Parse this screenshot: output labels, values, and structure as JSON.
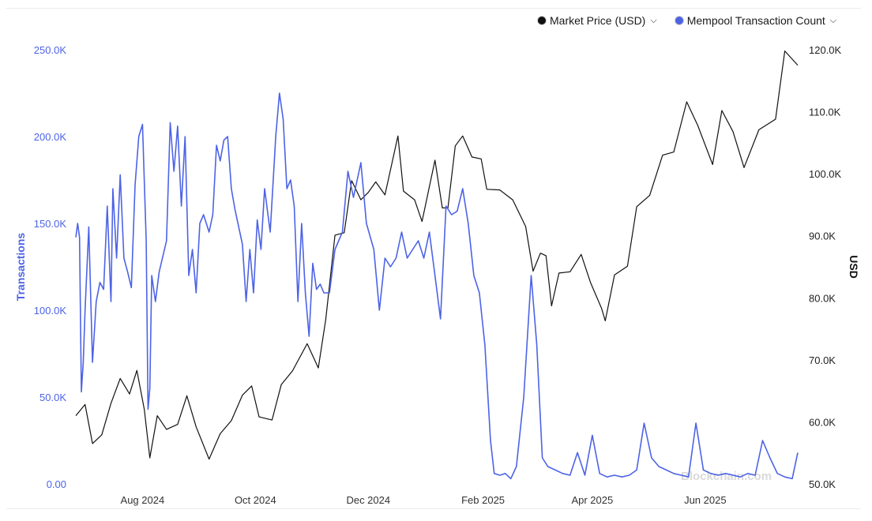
{
  "legend": {
    "price_label": "Market Price (USD)",
    "mempool_label": "Mempool Transaction Count",
    "price_color": "#111111",
    "mempool_color": "#4d63e6",
    "chevron": "❯"
  },
  "watermark": "Blockchain.com",
  "chart_data": {
    "type": "line",
    "left_axis": {
      "label": "Transactions",
      "range": [
        0,
        250000
      ],
      "ticks": [
        "0.00",
        "50.0K",
        "100.0K",
        "150.0K",
        "200.0K",
        "250.0K"
      ]
    },
    "right_axis": {
      "label": "USD",
      "range": [
        50000,
        120000
      ],
      "ticks": [
        "50.0K",
        "60.0K",
        "70.0K",
        "80.0K",
        "90.0K",
        "100.0K",
        "110.0K",
        "120.0K"
      ]
    },
    "x_range": [
      "2024-06-26",
      "2025-07-21"
    ],
    "x_ticks": [
      {
        "date": "2024-08-01",
        "label": "Aug 2024"
      },
      {
        "date": "2024-10-01",
        "label": "Oct 2024"
      },
      {
        "date": "2024-12-01",
        "label": "Dec 2024"
      },
      {
        "date": "2025-02-01",
        "label": "Feb 2025"
      },
      {
        "date": "2025-04-01",
        "label": "Apr 2025"
      },
      {
        "date": "2025-06-01",
        "label": "Jun 2025"
      }
    ],
    "grid": false,
    "legend_position": "top-right",
    "series": [
      {
        "name": "Market Price (USD)",
        "axis": "right",
        "color": "#111111",
        "points": [
          [
            "2024-06-26",
            61000
          ],
          [
            "2024-07-01",
            62800
          ],
          [
            "2024-07-05",
            56500
          ],
          [
            "2024-07-10",
            57900
          ],
          [
            "2024-07-15",
            63000
          ],
          [
            "2024-07-20",
            67000
          ],
          [
            "2024-07-25",
            64500
          ],
          [
            "2024-07-29",
            68300
          ],
          [
            "2024-08-02",
            62000
          ],
          [
            "2024-08-05",
            54200
          ],
          [
            "2024-08-09",
            61000
          ],
          [
            "2024-08-14",
            58800
          ],
          [
            "2024-08-20",
            59600
          ],
          [
            "2024-08-25",
            64200
          ],
          [
            "2024-08-30",
            59200
          ],
          [
            "2024-09-06",
            54000
          ],
          [
            "2024-09-12",
            58100
          ],
          [
            "2024-09-18",
            60200
          ],
          [
            "2024-09-24",
            64300
          ],
          [
            "2024-09-29",
            65800
          ],
          [
            "2024-10-03",
            60800
          ],
          [
            "2024-10-10",
            60300
          ],
          [
            "2024-10-15",
            66000
          ],
          [
            "2024-10-21",
            68200
          ],
          [
            "2024-10-29",
            72600
          ],
          [
            "2024-11-04",
            68700
          ],
          [
            "2024-11-08",
            76500
          ],
          [
            "2024-11-13",
            90100
          ],
          [
            "2024-11-18",
            90500
          ],
          [
            "2024-11-22",
            98900
          ],
          [
            "2024-11-27",
            95800
          ],
          [
            "2024-12-01",
            97000
          ],
          [
            "2024-12-05",
            98700
          ],
          [
            "2024-12-10",
            96600
          ],
          [
            "2024-12-17",
            106100
          ],
          [
            "2024-12-20",
            97200
          ],
          [
            "2024-12-26",
            95800
          ],
          [
            "2024-12-30",
            92300
          ],
          [
            "2025-01-06",
            102200
          ],
          [
            "2025-01-10",
            94500
          ],
          [
            "2025-01-13",
            94500
          ],
          [
            "2025-01-17",
            104500
          ],
          [
            "2025-01-21",
            106100
          ],
          [
            "2025-01-26",
            102700
          ],
          [
            "2025-01-31",
            102400
          ],
          [
            "2025-02-03",
            97500
          ],
          [
            "2025-02-10",
            97400
          ],
          [
            "2025-02-17",
            95800
          ],
          [
            "2025-02-24",
            91500
          ],
          [
            "2025-02-28",
            84300
          ],
          [
            "2025-03-04",
            87200
          ],
          [
            "2025-03-07",
            86800
          ],
          [
            "2025-03-10",
            78700
          ],
          [
            "2025-03-14",
            84000
          ],
          [
            "2025-03-20",
            84200
          ],
          [
            "2025-03-26",
            87000
          ],
          [
            "2025-03-31",
            82500
          ],
          [
            "2025-04-06",
            78300
          ],
          [
            "2025-04-08",
            76300
          ],
          [
            "2025-04-13",
            83700
          ],
          [
            "2025-04-20",
            85100
          ],
          [
            "2025-04-25",
            94700
          ],
          [
            "2025-05-02",
            96500
          ],
          [
            "2025-05-09",
            103000
          ],
          [
            "2025-05-15",
            103500
          ],
          [
            "2025-05-22",
            111600
          ],
          [
            "2025-05-28",
            107800
          ],
          [
            "2025-06-05",
            101500
          ],
          [
            "2025-06-10",
            110200
          ],
          [
            "2025-06-16",
            106800
          ],
          [
            "2025-06-22",
            101000
          ],
          [
            "2025-06-30",
            107100
          ],
          [
            "2025-07-09",
            108800
          ],
          [
            "2025-07-14",
            119800
          ],
          [
            "2025-07-21",
            117500
          ]
        ]
      },
      {
        "name": "Mempool Transaction Count",
        "axis": "left",
        "color": "#4d63e6",
        "points": [
          [
            "2024-06-26",
            142000
          ],
          [
            "2024-06-27",
            150000
          ],
          [
            "2024-06-28",
            142000
          ],
          [
            "2024-06-29",
            53000
          ],
          [
            "2024-06-30",
            70000
          ],
          [
            "2024-07-01",
            100000
          ],
          [
            "2024-07-03",
            148000
          ],
          [
            "2024-07-05",
            70000
          ],
          [
            "2024-07-07",
            105000
          ],
          [
            "2024-07-09",
            116000
          ],
          [
            "2024-07-11",
            112000
          ],
          [
            "2024-07-13",
            160000
          ],
          [
            "2024-07-15",
            105000
          ],
          [
            "2024-07-16",
            170000
          ],
          [
            "2024-07-18",
            130000
          ],
          [
            "2024-07-20",
            178000
          ],
          [
            "2024-07-22",
            130000
          ],
          [
            "2024-07-24",
            122000
          ],
          [
            "2024-07-26",
            113000
          ],
          [
            "2024-07-28",
            172000
          ],
          [
            "2024-07-30",
            200000
          ],
          [
            "2024-08-01",
            207000
          ],
          [
            "2024-08-03",
            140000
          ],
          [
            "2024-08-04",
            43000
          ],
          [
            "2024-08-05",
            55000
          ],
          [
            "2024-08-06",
            120000
          ],
          [
            "2024-08-08",
            105000
          ],
          [
            "2024-08-10",
            122000
          ],
          [
            "2024-08-14",
            140000
          ],
          [
            "2024-08-16",
            208000
          ],
          [
            "2024-08-18",
            180000
          ],
          [
            "2024-08-20",
            206000
          ],
          [
            "2024-08-22",
            160000
          ],
          [
            "2024-08-24",
            200000
          ],
          [
            "2024-08-26",
            120000
          ],
          [
            "2024-08-28",
            135000
          ],
          [
            "2024-08-30",
            110000
          ],
          [
            "2024-09-01",
            150000
          ],
          [
            "2024-09-03",
            155000
          ],
          [
            "2024-09-06",
            145000
          ],
          [
            "2024-09-08",
            155000
          ],
          [
            "2024-09-10",
            195000
          ],
          [
            "2024-09-12",
            186000
          ],
          [
            "2024-09-14",
            198000
          ],
          [
            "2024-09-16",
            200000
          ],
          [
            "2024-09-18",
            170000
          ],
          [
            "2024-09-20",
            158000
          ],
          [
            "2024-09-22",
            148000
          ],
          [
            "2024-09-24",
            138000
          ],
          [
            "2024-09-26",
            105000
          ],
          [
            "2024-09-28",
            135000
          ],
          [
            "2024-09-30",
            110000
          ],
          [
            "2024-10-02",
            152000
          ],
          [
            "2024-10-04",
            135000
          ],
          [
            "2024-10-06",
            170000
          ],
          [
            "2024-10-09",
            145000
          ],
          [
            "2024-10-12",
            200000
          ],
          [
            "2024-10-14",
            225000
          ],
          [
            "2024-10-16",
            210000
          ],
          [
            "2024-10-18",
            170000
          ],
          [
            "2024-10-20",
            175000
          ],
          [
            "2024-10-22",
            160000
          ],
          [
            "2024-10-24",
            105000
          ],
          [
            "2024-10-26",
            150000
          ],
          [
            "2024-10-28",
            110000
          ],
          [
            "2024-10-30",
            85000
          ],
          [
            "2024-11-01",
            127000
          ],
          [
            "2024-11-03",
            112000
          ],
          [
            "2024-11-05",
            115000
          ],
          [
            "2024-11-07",
            110000
          ],
          [
            "2024-11-10",
            110000
          ],
          [
            "2024-11-13",
            135000
          ],
          [
            "2024-11-17",
            145000
          ],
          [
            "2024-11-20",
            180000
          ],
          [
            "2024-11-23",
            165000
          ],
          [
            "2024-11-27",
            185000
          ],
          [
            "2024-11-30",
            150000
          ],
          [
            "2024-12-04",
            135000
          ],
          [
            "2024-12-07",
            100000
          ],
          [
            "2024-12-10",
            130000
          ],
          [
            "2024-12-13",
            125000
          ],
          [
            "2024-12-16",
            130000
          ],
          [
            "2024-12-19",
            145000
          ],
          [
            "2024-12-22",
            130000
          ],
          [
            "2024-12-25",
            135000
          ],
          [
            "2024-12-28",
            140000
          ],
          [
            "2024-12-31",
            130000
          ],
          [
            "2025-01-03",
            145000
          ],
          [
            "2025-01-06",
            120000
          ],
          [
            "2025-01-09",
            95000
          ],
          [
            "2025-01-12",
            160000
          ],
          [
            "2025-01-15",
            155000
          ],
          [
            "2025-01-18",
            157000
          ],
          [
            "2025-01-21",
            170000
          ],
          [
            "2025-01-24",
            150000
          ],
          [
            "2025-01-27",
            120000
          ],
          [
            "2025-01-30",
            110000
          ],
          [
            "2025-02-02",
            80000
          ],
          [
            "2025-02-05",
            25000
          ],
          [
            "2025-02-07",
            6000
          ],
          [
            "2025-02-10",
            5000
          ],
          [
            "2025-02-13",
            6000
          ],
          [
            "2025-02-16",
            3000
          ],
          [
            "2025-02-19",
            10000
          ],
          [
            "2025-02-23",
            50000
          ],
          [
            "2025-02-27",
            120000
          ],
          [
            "2025-03-02",
            80000
          ],
          [
            "2025-03-05",
            15000
          ],
          [
            "2025-03-08",
            10000
          ],
          [
            "2025-03-12",
            8000
          ],
          [
            "2025-03-16",
            6000
          ],
          [
            "2025-03-20",
            5000
          ],
          [
            "2025-03-24",
            18000
          ],
          [
            "2025-03-28",
            5000
          ],
          [
            "2025-04-01",
            28000
          ],
          [
            "2025-04-05",
            6000
          ],
          [
            "2025-04-09",
            4000
          ],
          [
            "2025-04-13",
            5000
          ],
          [
            "2025-04-17",
            4000
          ],
          [
            "2025-04-21",
            5000
          ],
          [
            "2025-04-25",
            8000
          ],
          [
            "2025-04-29",
            35000
          ],
          [
            "2025-05-03",
            15000
          ],
          [
            "2025-05-07",
            10000
          ],
          [
            "2025-05-11",
            8000
          ],
          [
            "2025-05-15",
            6000
          ],
          [
            "2025-05-19",
            5000
          ],
          [
            "2025-05-23",
            4000
          ],
          [
            "2025-05-27",
            35000
          ],
          [
            "2025-05-31",
            8000
          ],
          [
            "2025-06-04",
            6000
          ],
          [
            "2025-06-08",
            5000
          ],
          [
            "2025-06-12",
            6000
          ],
          [
            "2025-06-16",
            5000
          ],
          [
            "2025-06-20",
            4000
          ],
          [
            "2025-06-24",
            6000
          ],
          [
            "2025-06-28",
            5000
          ],
          [
            "2025-07-02",
            25000
          ],
          [
            "2025-07-06",
            15000
          ],
          [
            "2025-07-10",
            6000
          ],
          [
            "2025-07-14",
            4000
          ],
          [
            "2025-07-18",
            3000
          ],
          [
            "2025-07-21",
            18000
          ]
        ]
      }
    ]
  }
}
